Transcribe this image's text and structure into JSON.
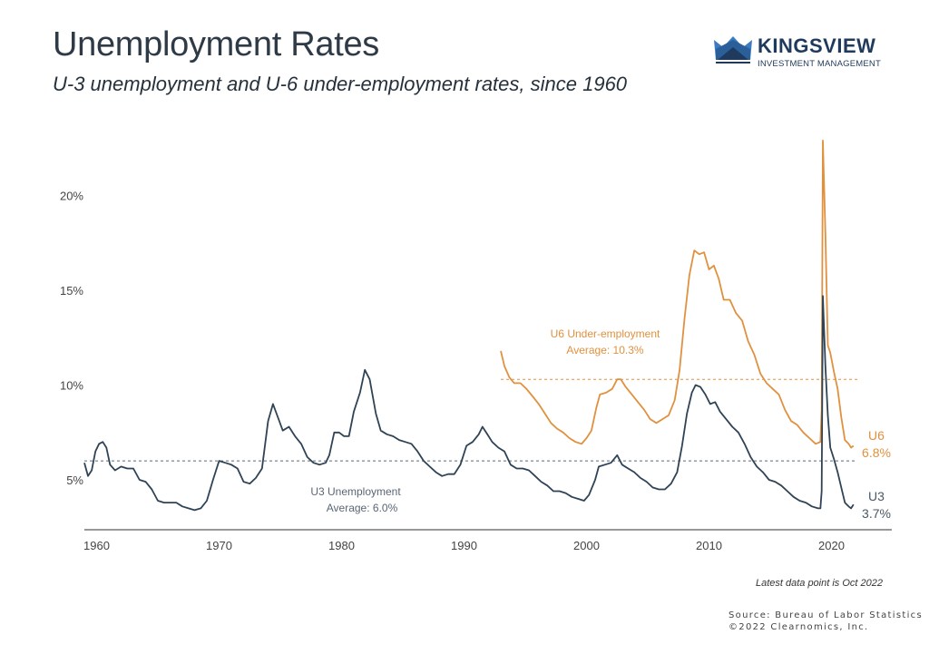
{
  "header": {
    "title": "Unemployment Rates",
    "subtitle": "U-3 unemployment and U-6 under-employment rates, since 1960"
  },
  "logo": {
    "name": "KINGSVIEW",
    "tagline": "INVESTMENT MANAGEMENT"
  },
  "footer": {
    "latest_note": "Latest data point is Oct 2022",
    "source": "Source: Bureau of Labor Statistics",
    "copyright": "©2022 Clearnomics, Inc."
  },
  "colors": {
    "u3": "#2f4356",
    "u6": "#e0913f",
    "axis": "#666666",
    "text": "#444444"
  },
  "chart_data": {
    "type": "line",
    "title": "Unemployment Rates",
    "subtitle": "U-3 unemployment and U-6 under-employment rates, since 1960",
    "xlabel": "",
    "ylabel": "",
    "xlim": [
      1960,
      2023
    ],
    "ylim": [
      2.8,
      23.5
    ],
    "x_ticks": [
      1960,
      1970,
      1980,
      1990,
      2000,
      2010,
      2020
    ],
    "x_tick_labels": [
      "1960",
      "1970",
      "1980",
      "1990",
      "2000",
      "2010",
      "2020"
    ],
    "y_ticks": [
      5,
      10,
      15,
      20
    ],
    "y_tick_labels": [
      "5%",
      "10%",
      "15%",
      "20%"
    ],
    "grid": false,
    "series": [
      {
        "name": "U3 Unemployment",
        "end_label": "U3",
        "end_value_label": "3.7%",
        "average_label": "U3 Unemployment",
        "average_value_label": "Average: 6.0%",
        "average": 6.0,
        "points": [
          [
            1960.0,
            5.9
          ],
          [
            1960.3,
            5.2
          ],
          [
            1960.6,
            5.5
          ],
          [
            1960.9,
            6.5
          ],
          [
            1961.2,
            6.9
          ],
          [
            1961.5,
            7.0
          ],
          [
            1961.8,
            6.7
          ],
          [
            1962.1,
            5.8
          ],
          [
            1962.5,
            5.5
          ],
          [
            1963.0,
            5.7
          ],
          [
            1963.5,
            5.6
          ],
          [
            1964.0,
            5.6
          ],
          [
            1964.5,
            5.0
          ],
          [
            1965.0,
            4.9
          ],
          [
            1965.5,
            4.5
          ],
          [
            1966.0,
            3.9
          ],
          [
            1966.5,
            3.8
          ],
          [
            1967.0,
            3.8
          ],
          [
            1967.5,
            3.8
          ],
          [
            1968.0,
            3.6
          ],
          [
            1968.5,
            3.5
          ],
          [
            1969.0,
            3.4
          ],
          [
            1969.5,
            3.5
          ],
          [
            1970.0,
            3.9
          ],
          [
            1970.5,
            5.0
          ],
          [
            1971.0,
            6.0
          ],
          [
            1971.5,
            5.9
          ],
          [
            1972.0,
            5.8
          ],
          [
            1972.5,
            5.6
          ],
          [
            1973.0,
            4.9
          ],
          [
            1973.5,
            4.8
          ],
          [
            1974.0,
            5.1
          ],
          [
            1974.5,
            5.6
          ],
          [
            1975.0,
            8.1
          ],
          [
            1975.4,
            9.0
          ],
          [
            1975.8,
            8.3
          ],
          [
            1976.2,
            7.6
          ],
          [
            1976.7,
            7.8
          ],
          [
            1977.2,
            7.3
          ],
          [
            1977.7,
            6.9
          ],
          [
            1978.2,
            6.2
          ],
          [
            1978.7,
            5.9
          ],
          [
            1979.2,
            5.8
          ],
          [
            1979.7,
            5.9
          ],
          [
            1980.0,
            6.3
          ],
          [
            1980.4,
            7.5
          ],
          [
            1980.8,
            7.5
          ],
          [
            1981.2,
            7.3
          ],
          [
            1981.6,
            7.3
          ],
          [
            1982.0,
            8.6
          ],
          [
            1982.5,
            9.6
          ],
          [
            1982.9,
            10.8
          ],
          [
            1983.3,
            10.3
          ],
          [
            1983.8,
            8.5
          ],
          [
            1984.2,
            7.6
          ],
          [
            1984.7,
            7.4
          ],
          [
            1985.2,
            7.3
          ],
          [
            1985.7,
            7.1
          ],
          [
            1986.2,
            7.0
          ],
          [
            1986.7,
            6.9
          ],
          [
            1987.2,
            6.5
          ],
          [
            1987.7,
            6.0
          ],
          [
            1988.2,
            5.7
          ],
          [
            1988.7,
            5.4
          ],
          [
            1989.2,
            5.2
          ],
          [
            1989.7,
            5.3
          ],
          [
            1990.2,
            5.3
          ],
          [
            1990.7,
            5.8
          ],
          [
            1991.2,
            6.8
          ],
          [
            1991.7,
            7.0
          ],
          [
            1992.2,
            7.4
          ],
          [
            1992.5,
            7.8
          ],
          [
            1992.9,
            7.4
          ],
          [
            1993.3,
            7.0
          ],
          [
            1993.8,
            6.7
          ],
          [
            1994.3,
            6.5
          ],
          [
            1994.8,
            5.8
          ],
          [
            1995.3,
            5.6
          ],
          [
            1995.8,
            5.6
          ],
          [
            1996.3,
            5.5
          ],
          [
            1996.8,
            5.2
          ],
          [
            1997.3,
            4.9
          ],
          [
            1997.8,
            4.7
          ],
          [
            1998.3,
            4.4
          ],
          [
            1998.8,
            4.4
          ],
          [
            1999.3,
            4.3
          ],
          [
            1999.8,
            4.1
          ],
          [
            2000.3,
            4.0
          ],
          [
            2000.8,
            3.9
          ],
          [
            2001.2,
            4.2
          ],
          [
            2001.7,
            5.0
          ],
          [
            2002.0,
            5.7
          ],
          [
            2002.5,
            5.8
          ],
          [
            2003.0,
            5.9
          ],
          [
            2003.5,
            6.3
          ],
          [
            2003.9,
            5.8
          ],
          [
            2004.4,
            5.6
          ],
          [
            2004.9,
            5.4
          ],
          [
            2005.4,
            5.1
          ],
          [
            2005.9,
            4.9
          ],
          [
            2006.4,
            4.6
          ],
          [
            2006.9,
            4.5
          ],
          [
            2007.4,
            4.5
          ],
          [
            2007.9,
            4.8
          ],
          [
            2008.4,
            5.4
          ],
          [
            2008.8,
            6.8
          ],
          [
            2009.2,
            8.5
          ],
          [
            2009.6,
            9.6
          ],
          [
            2009.9,
            10.0
          ],
          [
            2010.3,
            9.9
          ],
          [
            2010.7,
            9.5
          ],
          [
            2011.1,
            9.0
          ],
          [
            2011.5,
            9.1
          ],
          [
            2011.9,
            8.6
          ],
          [
            2012.4,
            8.2
          ],
          [
            2012.9,
            7.8
          ],
          [
            2013.4,
            7.5
          ],
          [
            2013.9,
            6.9
          ],
          [
            2014.4,
            6.2
          ],
          [
            2014.9,
            5.7
          ],
          [
            2015.4,
            5.4
          ],
          [
            2015.9,
            5.0
          ],
          [
            2016.4,
            4.9
          ],
          [
            2016.9,
            4.7
          ],
          [
            2017.4,
            4.4
          ],
          [
            2017.9,
            4.1
          ],
          [
            2018.4,
            3.9
          ],
          [
            2018.9,
            3.8
          ],
          [
            2019.4,
            3.6
          ],
          [
            2019.9,
            3.5
          ],
          [
            2020.1,
            3.5
          ],
          [
            2020.2,
            4.4
          ],
          [
            2020.3,
            14.7
          ],
          [
            2020.5,
            11.0
          ],
          [
            2020.7,
            8.4
          ],
          [
            2020.9,
            6.7
          ],
          [
            2021.2,
            6.1
          ],
          [
            2021.5,
            5.4
          ],
          [
            2021.8,
            4.6
          ],
          [
            2022.1,
            3.8
          ],
          [
            2022.4,
            3.6
          ],
          [
            2022.6,
            3.5
          ],
          [
            2022.8,
            3.7
          ]
        ]
      },
      {
        "name": "U6 Under-employment",
        "end_label": "U6",
        "end_value_label": "6.8%",
        "average_label": "U6 Under-employment",
        "average_value_label": "Average: 10.3%",
        "average": 10.3,
        "points": [
          [
            1994.0,
            11.8
          ],
          [
            1994.3,
            11.0
          ],
          [
            1994.7,
            10.4
          ],
          [
            1995.1,
            10.1
          ],
          [
            1995.6,
            10.1
          ],
          [
            1996.1,
            9.8
          ],
          [
            1996.6,
            9.4
          ],
          [
            1997.1,
            9.0
          ],
          [
            1997.6,
            8.5
          ],
          [
            1998.1,
            8.0
          ],
          [
            1998.6,
            7.7
          ],
          [
            1999.1,
            7.5
          ],
          [
            1999.6,
            7.2
          ],
          [
            2000.1,
            7.0
          ],
          [
            2000.6,
            6.9
          ],
          [
            2001.0,
            7.2
          ],
          [
            2001.4,
            7.6
          ],
          [
            2001.8,
            8.8
          ],
          [
            2002.1,
            9.5
          ],
          [
            2002.6,
            9.6
          ],
          [
            2003.1,
            9.8
          ],
          [
            2003.5,
            10.3
          ],
          [
            2003.8,
            10.3
          ],
          [
            2004.2,
            9.9
          ],
          [
            2004.7,
            9.5
          ],
          [
            2005.2,
            9.1
          ],
          [
            2005.7,
            8.7
          ],
          [
            2006.2,
            8.2
          ],
          [
            2006.7,
            8.0
          ],
          [
            2007.2,
            8.2
          ],
          [
            2007.7,
            8.4
          ],
          [
            2008.2,
            9.2
          ],
          [
            2008.6,
            10.8
          ],
          [
            2009.0,
            13.5
          ],
          [
            2009.4,
            15.8
          ],
          [
            2009.8,
            17.1
          ],
          [
            2010.2,
            16.9
          ],
          [
            2010.6,
            17.0
          ],
          [
            2011.0,
            16.1
          ],
          [
            2011.4,
            16.3
          ],
          [
            2011.8,
            15.6
          ],
          [
            2012.2,
            14.5
          ],
          [
            2012.7,
            14.5
          ],
          [
            2013.2,
            13.8
          ],
          [
            2013.7,
            13.4
          ],
          [
            2014.2,
            12.3
          ],
          [
            2014.7,
            11.6
          ],
          [
            2015.2,
            10.6
          ],
          [
            2015.7,
            10.1
          ],
          [
            2016.2,
            9.8
          ],
          [
            2016.7,
            9.5
          ],
          [
            2017.2,
            8.7
          ],
          [
            2017.7,
            8.1
          ],
          [
            2018.2,
            7.9
          ],
          [
            2018.7,
            7.5
          ],
          [
            2019.2,
            7.2
          ],
          [
            2019.7,
            6.9
          ],
          [
            2020.1,
            7.0
          ],
          [
            2020.2,
            8.7
          ],
          [
            2020.3,
            22.9
          ],
          [
            2020.5,
            18.0
          ],
          [
            2020.7,
            12.1
          ],
          [
            2020.9,
            11.7
          ],
          [
            2021.2,
            10.7
          ],
          [
            2021.5,
            9.8
          ],
          [
            2021.8,
            8.3
          ],
          [
            2022.1,
            7.1
          ],
          [
            2022.4,
            6.9
          ],
          [
            2022.6,
            6.7
          ],
          [
            2022.8,
            6.8
          ]
        ]
      }
    ]
  }
}
